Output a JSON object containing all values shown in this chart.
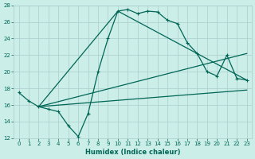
{
  "xlabel": "Humidex (Indice chaleur)",
  "bg_color": "#cceee8",
  "grid_color": "#aacccc",
  "line_color": "#006655",
  "xlim": [
    -0.5,
    23.5
  ],
  "ylim": [
    12,
    28
  ],
  "xticks": [
    0,
    1,
    2,
    3,
    4,
    5,
    6,
    7,
    8,
    9,
    10,
    11,
    12,
    13,
    14,
    15,
    16,
    17,
    18,
    19,
    20,
    21,
    22,
    23
  ],
  "yticks": [
    12,
    14,
    16,
    18,
    20,
    22,
    24,
    26,
    28
  ],
  "line1_x": [
    0,
    1,
    2,
    3,
    4,
    5,
    6,
    7,
    8,
    9,
    10,
    11,
    12,
    13,
    14,
    15,
    16,
    17,
    18,
    19,
    20,
    21,
    22,
    23
  ],
  "line1_y": [
    17.5,
    16.5,
    15.8,
    15.5,
    15.2,
    13.5,
    12.2,
    15.0,
    20.0,
    24.0,
    27.3,
    27.5,
    27.0,
    27.3,
    27.2,
    26.2,
    25.8,
    23.5,
    22.2,
    20.0,
    19.5,
    22.0,
    19.2,
    19.0
  ],
  "line2_x": [
    2,
    10,
    23
  ],
  "line2_y": [
    15.8,
    27.3,
    19.0
  ],
  "line3_x": [
    2,
    23
  ],
  "line3_y": [
    15.8,
    22.2
  ],
  "line4_x": [
    2,
    23
  ],
  "line4_y": [
    15.8,
    17.8
  ]
}
